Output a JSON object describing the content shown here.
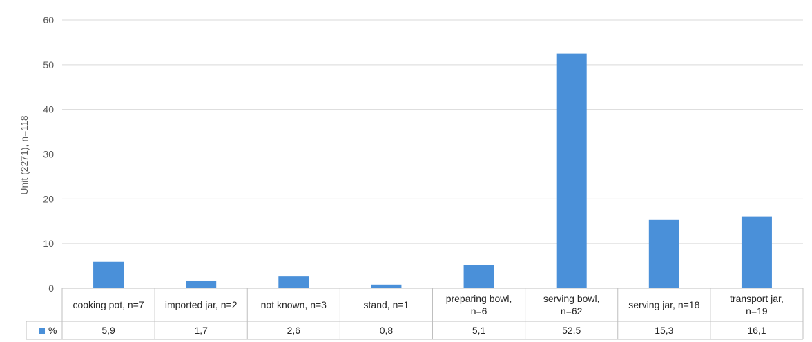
{
  "chart_data": {
    "type": "bar",
    "ylabel": "Unit (2271), n=118",
    "xlabel": "",
    "ylim": [
      0,
      60
    ],
    "yticks": [
      0,
      10,
      20,
      30,
      40,
      50,
      60
    ],
    "grid": true,
    "categories": [
      [
        "cooking pot, n=7"
      ],
      [
        "imported jar, n=2"
      ],
      [
        "not known, n=3"
      ],
      [
        "stand, n=1"
      ],
      [
        "preparing bowl,",
        "n=6"
      ],
      [
        "serving bowl,",
        "n=62"
      ],
      [
        "serving jar, n=18"
      ],
      [
        "transport jar,",
        "n=19"
      ]
    ],
    "series": [
      {
        "name": "%",
        "values": [
          5.9,
          1.7,
          2.6,
          0.8,
          5.1,
          52.5,
          15.3,
          16.1
        ],
        "value_labels": [
          "5,9",
          "1,7",
          "2,6",
          "0,8",
          "5,1",
          "52,5",
          "15,3",
          "16,1"
        ],
        "color": "#4a90d9"
      }
    ],
    "legend": "data-table-left",
    "colors": {
      "grid": "#d9d9d9",
      "table_border": "#bfbfbf",
      "bar": "#4a90d9"
    }
  }
}
